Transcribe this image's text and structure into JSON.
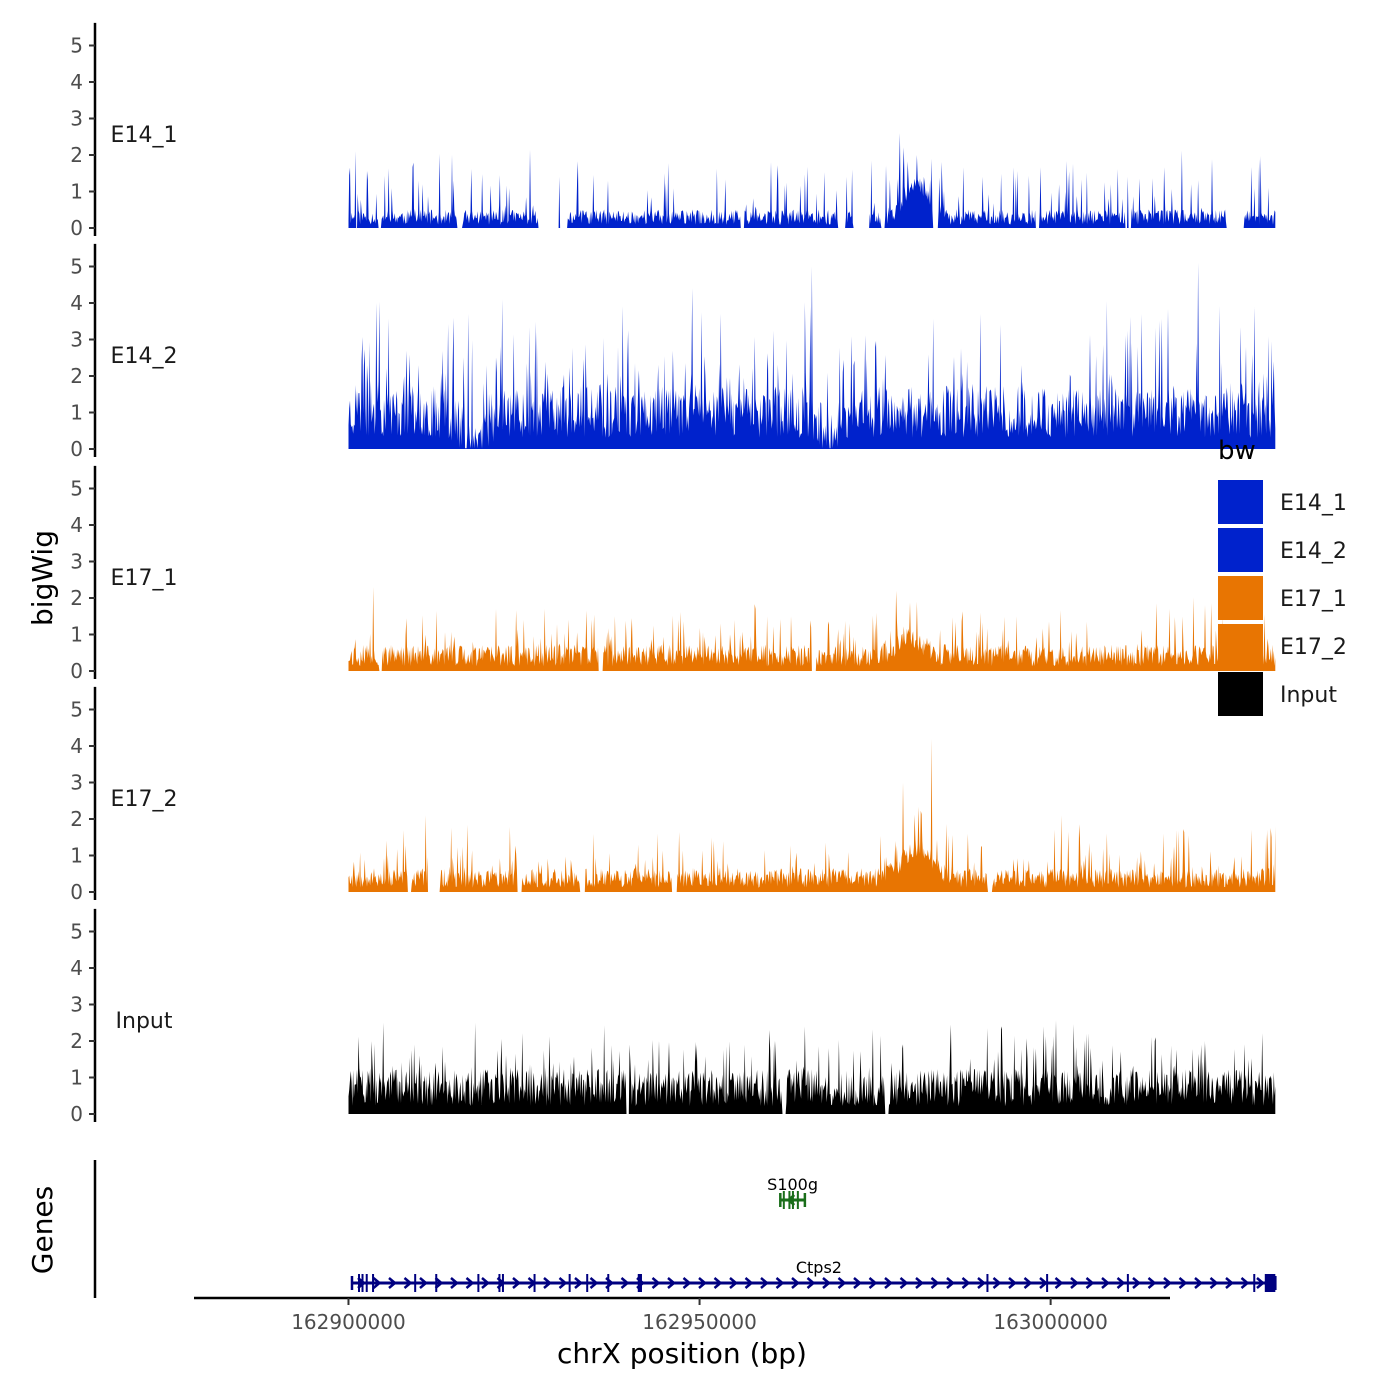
{
  "chart_data": {
    "type": "area",
    "title": "",
    "xlabel": "chrX position (bp)",
    "ylabel": "bigWig",
    "gene_panel_label": "Genes",
    "xlim": [
      162878000,
      163017000
    ],
    "x_range_data": [
      162900000,
      163032000
    ],
    "ylim": [
      0,
      5.4
    ],
    "y_ticks": [
      "0",
      "1",
      "2",
      "3",
      "4",
      "5"
    ],
    "x_ticks": [
      {
        "value": 162900000,
        "label": "162900000"
      },
      {
        "value": 162950000,
        "label": "162950000"
      },
      {
        "value": 163000000,
        "label": "163000000"
      }
    ],
    "legend": {
      "title": "bw",
      "position": "right",
      "items": [
        {
          "label": "E14_1",
          "color": "#0022cc"
        },
        {
          "label": "E14_2",
          "color": "#0022cc"
        },
        {
          "label": "E17_1",
          "color": "#e87502"
        },
        {
          "label": "E17_2",
          "color": "#e87502"
        },
        {
          "label": "Input",
          "color": "#000000"
        }
      ]
    },
    "series": [
      {
        "name": "E14_1",
        "label": "E14_1",
        "color": "#0022cc",
        "base": 0.35,
        "spike": 1.3,
        "spike_rate": 0.12,
        "seed": 11,
        "gaps": [
          [
            162900900,
            162901300
          ],
          [
            162904200,
            162904700
          ],
          [
            162915500,
            162916200
          ],
          [
            162927000,
            162931200
          ],
          [
            162955800,
            162956400
          ],
          [
            162969700,
            162970800
          ],
          [
            162971900,
            162974200
          ],
          [
            162975900,
            162976400
          ],
          [
            162983200,
            162984000
          ],
          [
            162997800,
            162998400
          ],
          [
            163010600,
            163011500
          ],
          [
            163025000,
            163027500
          ]
        ],
        "peaks": [
          {
            "x": 162901000,
            "y": 2.1
          },
          {
            "x": 162910000,
            "y": 1.3
          },
          {
            "x": 162915000,
            "y": 1.3
          },
          {
            "x": 162930000,
            "y": 1.4
          },
          {
            "x": 162937000,
            "y": 1.3
          },
          {
            "x": 162945000,
            "y": 1.5
          },
          {
            "x": 162961000,
            "y": 1.3
          },
          {
            "x": 162971000,
            "y": 1.4
          },
          {
            "x": 162978500,
            "y": 2.6
          },
          {
            "x": 162981000,
            "y": 2.0
          },
          {
            "x": 162983000,
            "y": 1.9
          },
          {
            "x": 162995000,
            "y": 1.4
          },
          {
            "x": 163011000,
            "y": 1.4
          },
          {
            "x": 163020000,
            "y": 1.2
          },
          {
            "x": 163031000,
            "y": 1.1
          }
        ],
        "bumps": [
          {
            "center": 162981000,
            "width": 2200,
            "height": 0.9
          }
        ]
      },
      {
        "name": "E14_2",
        "label": "E14_2",
        "color": "#0022cc",
        "base": 1.2,
        "spike": 2.0,
        "spike_rate": 0.15,
        "seed": 23,
        "gaps": [],
        "peaks": [
          {
            "x": 162904000,
            "y": 4.0
          },
          {
            "x": 162915000,
            "y": 3.6
          },
          {
            "x": 162917000,
            "y": 3.7
          },
          {
            "x": 162949000,
            "y": 4.4
          },
          {
            "x": 162953000,
            "y": 3.7
          },
          {
            "x": 162966000,
            "y": 5.0
          },
          {
            "x": 162990000,
            "y": 3.7
          },
          {
            "x": 163013000,
            "y": 3.7
          },
          {
            "x": 163021000,
            "y": 5.1
          },
          {
            "x": 163029000,
            "y": 3.9
          }
        ],
        "bumps": [
          {
            "center": 162918000,
            "width": 2500,
            "height": -0.8
          },
          {
            "center": 162969000,
            "width": 2000,
            "height": -0.5
          }
        ]
      },
      {
        "name": "E17_1",
        "label": "E17_1",
        "color": "#e87502",
        "base": 0.5,
        "spike": 1.0,
        "spike_rate": 0.12,
        "seed": 37,
        "gaps": [
          [
            162904300,
            162904800
          ],
          [
            162935600,
            162936200
          ],
          [
            162966000,
            162966600
          ]
        ],
        "peaks": [
          {
            "x": 162903500,
            "y": 2.3
          },
          {
            "x": 162921000,
            "y": 1.7
          },
          {
            "x": 162925000,
            "y": 1.4
          },
          {
            "x": 162955000,
            "y": 1.4
          },
          {
            "x": 162958000,
            "y": 1.7
          },
          {
            "x": 162978000,
            "y": 2.2
          },
          {
            "x": 162981000,
            "y": 1.9
          },
          {
            "x": 162990000,
            "y": 1.6
          },
          {
            "x": 163022000,
            "y": 1.8
          }
        ],
        "bumps": [
          {
            "center": 162980000,
            "width": 2500,
            "height": 0.5
          }
        ]
      },
      {
        "name": "E17_2",
        "label": "E17_2",
        "color": "#e87502",
        "base": 0.45,
        "spike": 1.0,
        "spike_rate": 0.12,
        "seed": 53,
        "gaps": [
          [
            162908400,
            162909000
          ],
          [
            162911300,
            162913000
          ],
          [
            162924000,
            162924700
          ],
          [
            162933000,
            162933700
          ],
          [
            162946000,
            162946800
          ],
          [
            162991000,
            162991700
          ]
        ],
        "peaks": [
          {
            "x": 162911000,
            "y": 2.1
          },
          {
            "x": 162944000,
            "y": 1.6
          },
          {
            "x": 162952000,
            "y": 1.4
          },
          {
            "x": 162979000,
            "y": 3.0
          },
          {
            "x": 162983000,
            "y": 4.2
          },
          {
            "x": 163001500,
            "y": 2.1
          },
          {
            "x": 163016000,
            "y": 1.6
          },
          {
            "x": 163031500,
            "y": 1.5
          }
        ],
        "bumps": [
          {
            "center": 162981000,
            "width": 3000,
            "height": 0.8
          }
        ]
      },
      {
        "name": "Input",
        "label": "Input",
        "color": "#000000",
        "base": 0.85,
        "spike": 1.1,
        "spike_rate": 0.16,
        "seed": 71,
        "gaps": [
          [
            162939500,
            162940000
          ],
          [
            162961800,
            162962300
          ],
          [
            162976400,
            162976900
          ]
        ],
        "peaks": [
          {
            "x": 162905000,
            "y": 2.5
          },
          {
            "x": 162918000,
            "y": 2.5
          },
          {
            "x": 162960000,
            "y": 2.3
          },
          {
            "x": 162965000,
            "y": 2.4
          },
          {
            "x": 162993000,
            "y": 2.4
          },
          {
            "x": 162999000,
            "y": 2.4
          },
          {
            "x": 163005000,
            "y": 2.2
          },
          {
            "x": 163015000,
            "y": 2.1
          }
        ],
        "bumps": []
      }
    ],
    "genes": [
      {
        "name": "S100g",
        "start": 162961500,
        "end": 162965000,
        "strand": "-",
        "color": "#1a6e1a",
        "row": 0,
        "exons": [
          162962000,
          162962800,
          162963300,
          162964000
        ]
      },
      {
        "name": "Ctps2",
        "start": 162900500,
        "end": 163032000,
        "strand": "+",
        "color": "#000080",
        "row": 1,
        "exons": [
          162901500,
          162902000,
          162902600,
          162903500,
          162909500,
          162912500,
          162918500,
          162921500,
          162922000,
          162926500,
          162931500,
          162934000,
          162937000,
          162941500,
          162991000,
          162999500,
          163011000,
          163029000
        ],
        "blocks": [
          [
            162941200,
            162941800
          ],
          [
            163030500,
            163032000
          ]
        ]
      }
    ]
  }
}
